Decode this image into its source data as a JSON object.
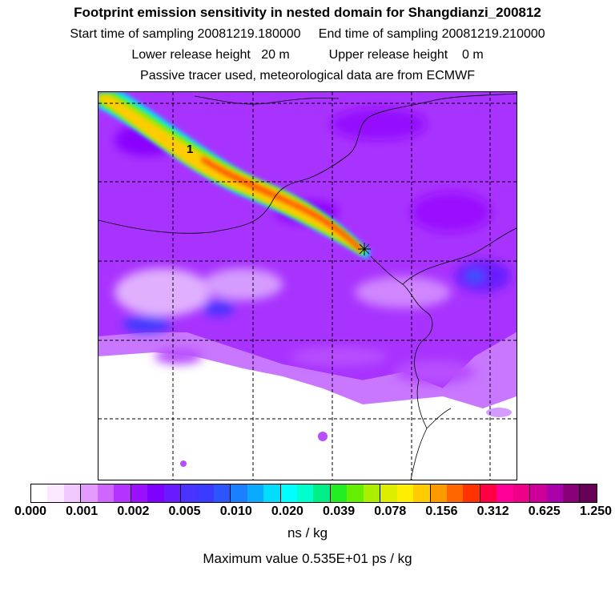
{
  "title": "Footprint emission sensitivity in nested domain for Shangdianzi_200812",
  "sampling": {
    "start": "Start time of sampling 20081219.180000",
    "end": "End time of sampling 20081219.210000"
  },
  "release": {
    "lower": "Lower release height   20 m",
    "upper": "Upper release height    0 m"
  },
  "note": "Passive tracer used, meteorological data are from ECMWF",
  "contour_label": "1",
  "colorbar": {
    "ticks": [
      "0.000",
      "0.001",
      "0.002",
      "0.005",
      "0.010",
      "0.020",
      "0.039",
      "0.078",
      "0.156",
      "0.312",
      "0.625",
      "1.250"
    ],
    "colors": [
      "#ffffff",
      "#fbe8ff",
      "#f2c8ff",
      "#e39bff",
      "#cf66ff",
      "#b533ff",
      "#9a10ff",
      "#8000ff",
      "#6a1aff",
      "#4b33ff",
      "#3a3aff",
      "#2a55ff",
      "#1a80ff",
      "#0aaaff",
      "#00ddff",
      "#00ffff",
      "#00ffcc",
      "#00ee88",
      "#22ee22",
      "#66ee00",
      "#aaee00",
      "#ddee00",
      "#ffee00",
      "#ffcc00",
      "#ff9900",
      "#ff6600",
      "#ff3300",
      "#ff0044",
      "#ff0099",
      "#ee0088",
      "#cc0099",
      "#aa00aa",
      "#880077",
      "#660055"
    ]
  },
  "units": "ns / kg",
  "max_value": "Maximum value  0.535E+01 ps / kg",
  "station_marker": "receptor-marker"
}
